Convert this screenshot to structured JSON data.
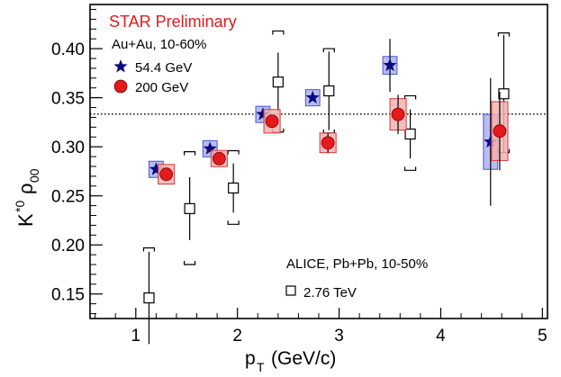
{
  "chart_data": {
    "type": "scatter",
    "xlabel_main": "p",
    "xlabel_sub": "T",
    "xlabel_unit": "(GeV/c)",
    "ylabel_main": "K",
    "ylabel_sup": "*0",
    "ylabel_rho": "ρ",
    "ylabel_sub": "00",
    "xlim": [
      0.55,
      5.05
    ],
    "ylim": [
      0.125,
      0.445
    ],
    "x_ticks": [
      1,
      2,
      3,
      4,
      5
    ],
    "x_tick_labels": [
      "1",
      "2",
      "3",
      "4",
      "5"
    ],
    "y_ticks": [
      0.15,
      0.2,
      0.25,
      0.3,
      0.35,
      0.4
    ],
    "y_tick_labels": [
      "0.15",
      "0.20",
      "0.25",
      "0.30",
      "0.35",
      "0.40"
    ],
    "reference_line": {
      "y": 0.3333,
      "style": "dotted"
    },
    "annotations": {
      "prelim": "STAR Preliminary",
      "system_star": "Au+Au, 10-60%",
      "system_alice": "ALICE, Pb+Pb, 10-50%"
    },
    "series": [
      {
        "name": "54.4 GeV",
        "marker": "star",
        "color": "#0b0b80",
        "box_fill": "#aab1ef",
        "box_stroke": "#4a55d8",
        "points": [
          {
            "x": 1.2,
            "y": 0.277,
            "err": 0.0,
            "sys": 0.007,
            "boxw": 0.07
          },
          {
            "x": 1.73,
            "y": 0.298,
            "err": 0.0,
            "sys": 0.005,
            "boxw": 0.07
          },
          {
            "x": 2.25,
            "y": 0.333,
            "err": 0.0,
            "sys": 0.008,
            "boxw": 0.07
          },
          {
            "x": 2.74,
            "y": 0.35,
            "err": 0.0,
            "sys": 0.008,
            "boxw": 0.07
          },
          {
            "x": 3.5,
            "y": 0.383,
            "err": 0.027,
            "sys": 0.009,
            "boxw": 0.07
          },
          {
            "x": 4.49,
            "y": 0.305,
            "err": 0.065,
            "sys": 0.028,
            "boxw": 0.07
          }
        ]
      },
      {
        "name": "200 GeV",
        "marker": "circle",
        "color": "#e41a1c",
        "box_fill": "#f2b3b0",
        "box_stroke": "#d83a3a",
        "points": [
          {
            "x": 1.3,
            "y": 0.272,
            "err": 0.004,
            "sys": 0.01,
            "boxw": 0.08
          },
          {
            "x": 1.82,
            "y": 0.288,
            "err": 0.004,
            "sys": 0.008,
            "boxw": 0.08
          },
          {
            "x": 2.34,
            "y": 0.326,
            "err": 0.005,
            "sys": 0.012,
            "boxw": 0.08
          },
          {
            "x": 2.89,
            "y": 0.304,
            "err": 0.01,
            "sys": 0.01,
            "boxw": 0.08
          },
          {
            "x": 3.58,
            "y": 0.333,
            "err": 0.02,
            "sys": 0.016,
            "boxw": 0.08
          },
          {
            "x": 4.58,
            "y": 0.316,
            "err": 0.04,
            "sys": 0.03,
            "boxw": 0.08
          }
        ]
      },
      {
        "name": "2.76 TeV",
        "marker": "open_square",
        "color": "#000000",
        "points": [
          {
            "x": 1.13,
            "y": 0.146,
            "err": 0.047,
            "sys_hi": 0.051,
            "sys_lo": 0.0
          },
          {
            "x": 1.53,
            "y": 0.237,
            "err": 0.032,
            "sys_hi": 0.058,
            "sys_lo": 0.057
          },
          {
            "x": 1.96,
            "y": 0.258,
            "err": 0.025,
            "sys_hi": 0.038,
            "sys_lo": 0.037
          },
          {
            "x": 2.4,
            "y": 0.366,
            "err": 0.03,
            "sys_hi": 0.052,
            "sys_lo": 0.051
          },
          {
            "x": 2.9,
            "y": 0.357,
            "err": 0.04,
            "sys_hi": 0.043,
            "sys_lo": 0.043
          },
          {
            "x": 3.7,
            "y": 0.313,
            "err": 0.025,
            "sys_hi": 0.039,
            "sys_lo": 0.037
          },
          {
            "x": 4.62,
            "y": 0.354,
            "err": 0.06,
            "sys_hi": 0.062,
            "sys_lo": 0.06
          }
        ]
      }
    ]
  }
}
